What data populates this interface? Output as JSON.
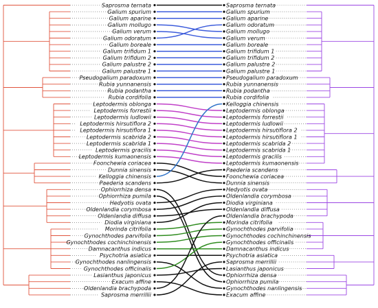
{
  "left_taxa": [
    "Saprosma ternata",
    "Galium spurium",
    "Galium aparine",
    "Galium mollugo",
    "Galium verum",
    "Galium odoratum",
    "Galium boreale",
    "Galium trifidum 1",
    "Galium trifidum 2",
    "Galium palustre 2",
    "Galium palustre 1",
    "Pseudogalium paradoxum",
    "Rubia yunnanensis",
    "Rubia podantha",
    "Rubia cordifolia",
    "Leptodermis oblonga",
    "Leptodermis forrestii",
    "Leptodermis ludlowii",
    "Leptodermis hirsutiflora 2",
    "Leptodermis hirsutiflora 1",
    "Leptodermis scabrida 2",
    "Leptodermis scabrida 1",
    "Leptodermis gracilis",
    "Leptodermis kumaonensis",
    "Foonchewia coriacea",
    "Dunnia sinensis",
    "Kelloggia chinensis",
    "Paederia scandens",
    "Ophiorrhiza densa",
    "Ophiorrhiza pumila",
    "Hedyotis ovata",
    "Oldenlandia corymbosa",
    "Oldenlandia diffusa",
    "Diodia virginiana",
    "Morinda citrifolia",
    "Gynochthodes parvifolia",
    "Gynochthodes cochinchinensis",
    "Damnacanthus indicus",
    "Psychotria asiatica",
    "Gynochthodes nanlingensis",
    "Gynochthodes officinalis",
    "Lasianthus japonicus",
    "Exacum affine",
    "Oldenlandia brachypoda",
    "Saprosma merrillii"
  ],
  "right_taxa": [
    "Saprosma ternata",
    "Galium spurium",
    "Galium aparine",
    "Galium odoratum",
    "Galium mollugo",
    "Galium verum",
    "Galium boreale",
    "Galium trifidum 1",
    "Galium trifidum 2",
    "Galium palustre 2",
    "Galium palustre 1",
    "Pseudogalium paradoxum",
    "Rubia yunnanensis",
    "Rubia podantha",
    "Rubia cordifolia",
    "Kelloggia chinensis",
    "Leptodermis oblonga",
    "Leptodermis forrestii",
    "Leptodermis ludlowii",
    "Leptodermis hirsutiflora 2",
    "Leptodermis hirsutiflora 1",
    "Leptodermis scabrida 2",
    "Leptodermis scabrida 1",
    "Leptodermis gracilis",
    "Leptodermis kumaonensis",
    "Paederia scandens",
    "Foonchewia coriacea",
    "Dunnia sinensis",
    "Hedyotis ovata",
    "Oldenlandia corymbosa",
    "Diodia virginiana",
    "Oldenlandia diffusa",
    "Oldenlandia brachypoda",
    "Morinda citrifolia",
    "Gynochthodes parvifolia",
    "Gynochthodes cochinchinensis",
    "Gynochthodes officinalis",
    "Damnacanthus indicus",
    "Psychotria asiatica",
    "Saprosma merrillii",
    "Lasianthus japonicus",
    "Ophiorrhiza densa",
    "Ophiorrhiza pumila",
    "Gynochthodes nanlingensis",
    "Exacum affine"
  ],
  "colors": {
    "left_tree": "#e0533c",
    "right_tree": "#9b45e3",
    "galium_links": "#3b5bdb",
    "leptodermis_links": "#c03fc8",
    "kelloggia_link": "#2f73c9",
    "gynochthodes_links": "#2e8b1e",
    "other_links": "#111111"
  }
}
